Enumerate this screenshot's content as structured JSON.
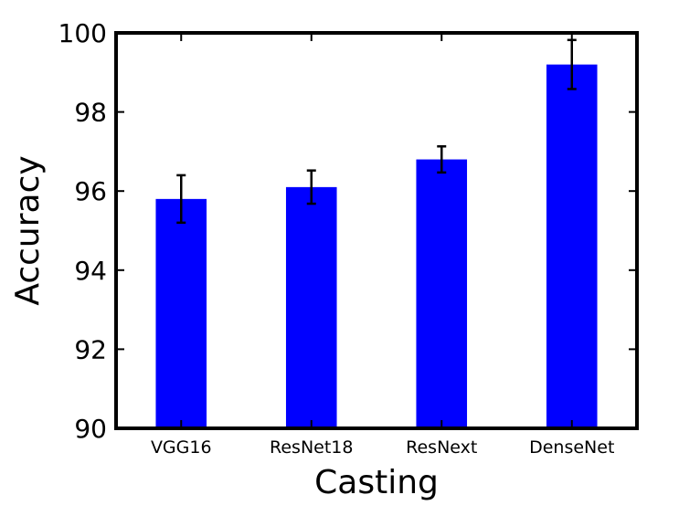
{
  "chart_data": {
    "type": "bar",
    "title": "",
    "xlabel": "Casting",
    "ylabel": "Accuracy",
    "categories": [
      "VGG16",
      "ResNet18",
      "ResNext",
      "DenseNet"
    ],
    "values": [
      95.8,
      96.1,
      96.8,
      99.2
    ],
    "errors": [
      0.6,
      0.42,
      0.33,
      0.62
    ],
    "ylim": [
      90,
      100
    ],
    "yticks": [
      90,
      92,
      94,
      96,
      98,
      100
    ],
    "bar_color": "#0000ff",
    "error_color": "#000000",
    "grid": false,
    "legend": "none"
  }
}
